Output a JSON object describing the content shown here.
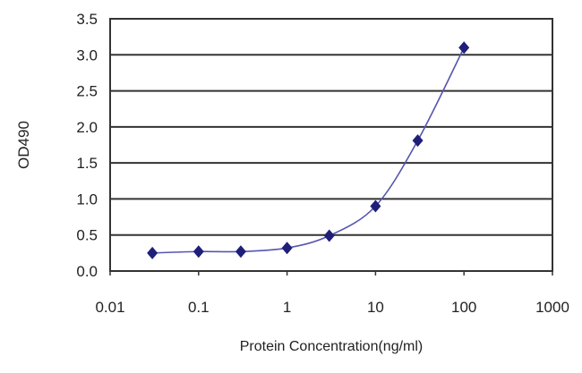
{
  "chart_data": {
    "type": "line",
    "title": "",
    "xlabel": "Protein Concentration(ng/ml)",
    "ylabel": "OD490",
    "xscale": "log",
    "xlim": [
      0.01,
      1000
    ],
    "ylim": [
      0,
      3.5
    ],
    "xticks": [
      "0.01",
      "0.1",
      "1",
      "10",
      "100",
      "1000"
    ],
    "xtick_values": [
      0.01,
      0.1,
      1,
      10,
      100,
      1000
    ],
    "yticks": [
      "0.0",
      "0.5",
      "1.0",
      "1.5",
      "2.0",
      "2.5",
      "3.0",
      "3.5"
    ],
    "ytick_values": [
      0,
      0.5,
      1,
      1.5,
      2,
      2.5,
      3,
      3.5
    ],
    "grid": "horizontal",
    "marker": "diamond",
    "series": [
      {
        "color": "#1f1f7a",
        "line_color": "#5555b0",
        "x": [
          0.03,
          0.1,
          0.3,
          1,
          3,
          10,
          30,
          100
        ],
        "y": [
          0.25,
          0.27,
          0.27,
          0.32,
          0.49,
          0.9,
          1.81,
          3.1
        ]
      }
    ]
  }
}
